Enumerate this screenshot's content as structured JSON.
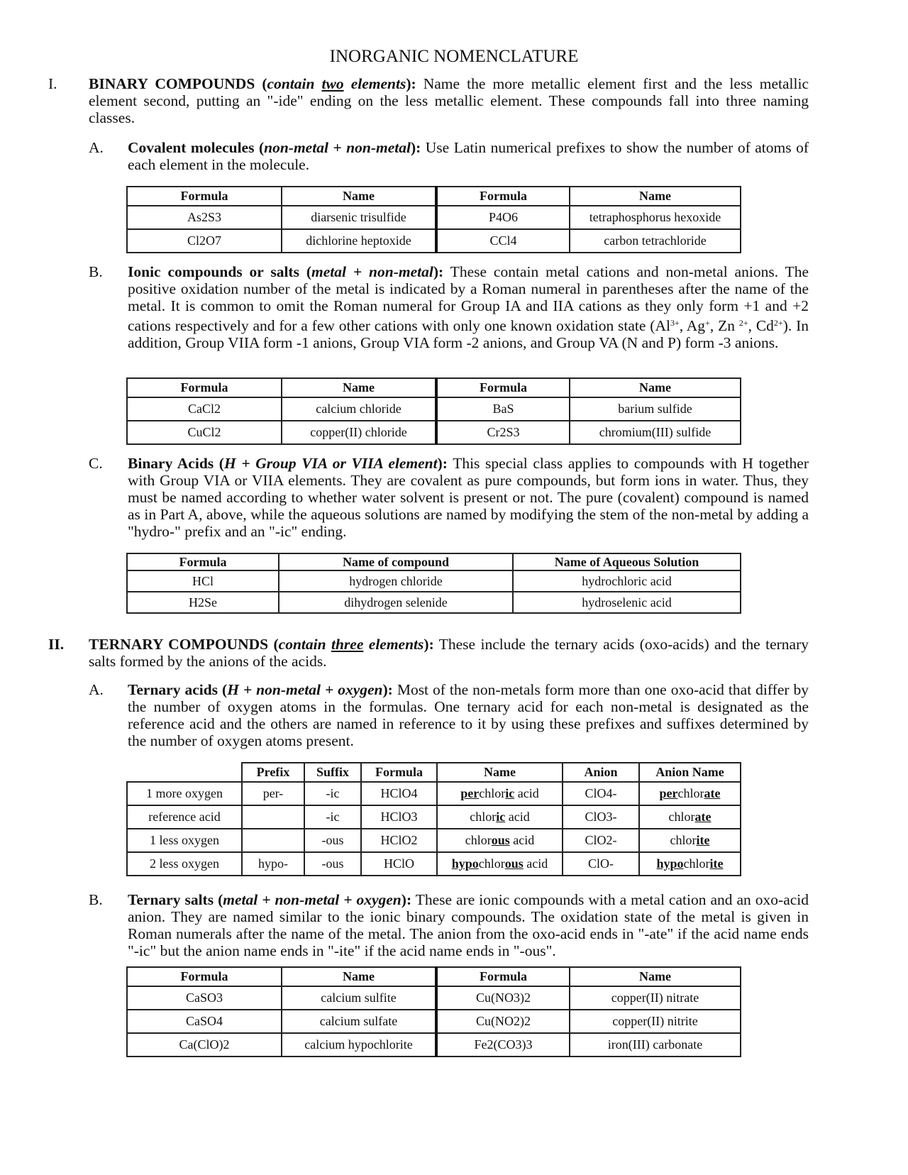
{
  "title": "INORGANIC NOMENCLATURE",
  "section1": {
    "num": "I.",
    "lead": "BINARY COMPOUNDS (",
    "lead_it": "contain ",
    "lead_ul": "two",
    "lead_it2": " elements",
    "lead_end": "):",
    "body": " Name the more metallic element first and the less metallic element second, putting an \"-ide\" ending on the less metallic element.  These compounds fall into three naming classes.",
    "A": {
      "letter": "A.",
      "lead": "Covalent molecules (",
      "lead_it": "non-metal + non-metal",
      "lead_end": "):",
      "body": " Use Latin numerical prefixes to show the number of atoms of each element in the molecule.",
      "headers": [
        "Formula",
        "Name",
        "Formula",
        "Name"
      ],
      "rows": [
        [
          "As2S3",
          "diarsenic trisulfide",
          "P4O6",
          "tetraphosphorus hexoxide"
        ],
        [
          "Cl2O7",
          "dichlorine heptoxide",
          "CCl4",
          "carbon tetrachloride"
        ]
      ]
    },
    "B": {
      "letter": "B.",
      "lead": "Ionic compounds or salts (",
      "lead_it": "metal + non-metal",
      "lead_end": "):",
      "body": " These contain metal cations and non-metal anions.  The positive oxidation number of the metal is indicated by a Roman numeral in parentheses after the name of the metal.  It is common to omit the Roman numeral for Group IA and IIA cations as they only form +1 and +2 cations respectively and for a few other cations with only one known oxidation state (Al^{3+}, Ag^{+}, Zn ^{2+}, Cd^{2+}).  In addition, Group VIIA form -1 anions, Group VIA form -2 anions, and Group VA (N and P) form -3 anions.",
      "headers": [
        "Formula",
        "Name",
        "Formula",
        "Name"
      ],
      "rows": [
        [
          "CaCl2",
          "calcium chloride",
          "BaS",
          "barium sulfide"
        ],
        [
          "CuCl2",
          "copper(II) chloride",
          "Cr2S3",
          "chromium(III) sulfide"
        ]
      ]
    },
    "C": {
      "letter": "C.",
      "lead": "Binary Acids (",
      "lead_it": "H + Group VIA or VIIA element",
      "lead_end": "):",
      "body": " This special class applies to compounds with H together with Group VIA or VIIA elements.  They are covalent as pure compounds, but form ions in water.  Thus, they must be named according to whether water solvent is present or not.  The pure (covalent) compound is named as in Part A, above, while the aqueous solutions are named by modifying the stem of the non-metal by adding a \"hydro-\" prefix and an \"-ic\" ending.",
      "headers": [
        "Formula",
        "Name of compound",
        "Name of Aqueous Solution"
      ],
      "rows": [
        [
          "HCl",
          "hydrogen chloride",
          "hydrochloric acid"
        ],
        [
          "H2Se",
          "dihydrogen selenide",
          "hydroselenic acid"
        ]
      ]
    }
  },
  "section2": {
    "num": "II.",
    "lead": "TERNARY COMPOUNDS (",
    "lead_it": "contain ",
    "lead_ul": "three",
    "lead_it2": " elements",
    "lead_end": "):",
    "body": " These include the ternary acids (oxo-acids) and the ternary salts formed by the anions of the acids.",
    "A": {
      "letter": "A.",
      "lead": "Ternary acids (",
      "lead_it": "H + non-metal + oxygen",
      "lead_end": "):",
      "body": " Most of the non-metals form more than one oxo-acid that differ by the number of oxygen atoms in the formulas.  One ternary acid for each non-metal is designated as the reference acid and the others are named in reference to it by using these prefixes and suffixes determined by the number of oxygen atoms present.",
      "headers": [
        "",
        "Prefix",
        "Suffix",
        "Formula",
        "Name",
        "Anion",
        "Anion Name"
      ],
      "rows": [
        [
          "1 more oxygen",
          "per-",
          "-ic",
          "HClO4",
          "**per**chlor**ic** acid",
          "ClO4-",
          "**per**chlor**ate**"
        ],
        [
          "reference acid",
          "",
          "-ic",
          "HClO3",
          "chlor**ic** acid",
          "ClO3-",
          "chlor**ate**"
        ],
        [
          "1 less oxygen",
          "",
          "-ous",
          "HClO2",
          "chlor**ous** acid",
          "ClO2-",
          "chlor**ite**"
        ],
        [
          "2 less oxygen",
          "hypo-",
          "-ous",
          "HClO",
          "**hypo**chlor**ous** acid",
          "ClO-",
          "**hypo**chlor**ite**"
        ]
      ]
    },
    "B": {
      "letter": "B.",
      "lead": "Ternary salts (",
      "lead_it": "metal + non-metal + oxygen",
      "lead_end": "):",
      "body": " These are ionic compounds with a metal cation and an oxo-acid anion.  They are named similar to the ionic binary compounds.  The oxidation state of the metal is given in Roman numerals after the name of the metal.  The anion from the oxo-acid ends in \"-ate\" if the acid name ends \"-ic\" but the anion name ends in \"-ite\" if the acid name ends in \"-ous\".",
      "headers": [
        "Formula",
        "Name",
        "Formula",
        "Name"
      ],
      "rows": [
        [
          "CaSO3",
          "calcium sulfite",
          "Cu(NO3)2",
          "copper(II) nitrate"
        ],
        [
          "CaSO4",
          "calcium sulfate",
          "Cu(NO2)2",
          "copper(II) nitrite"
        ],
        [
          "Ca(ClO)2",
          "calcium hypochlorite",
          "Fe2(CO3)3",
          "iron(III) carbonate"
        ]
      ]
    }
  }
}
